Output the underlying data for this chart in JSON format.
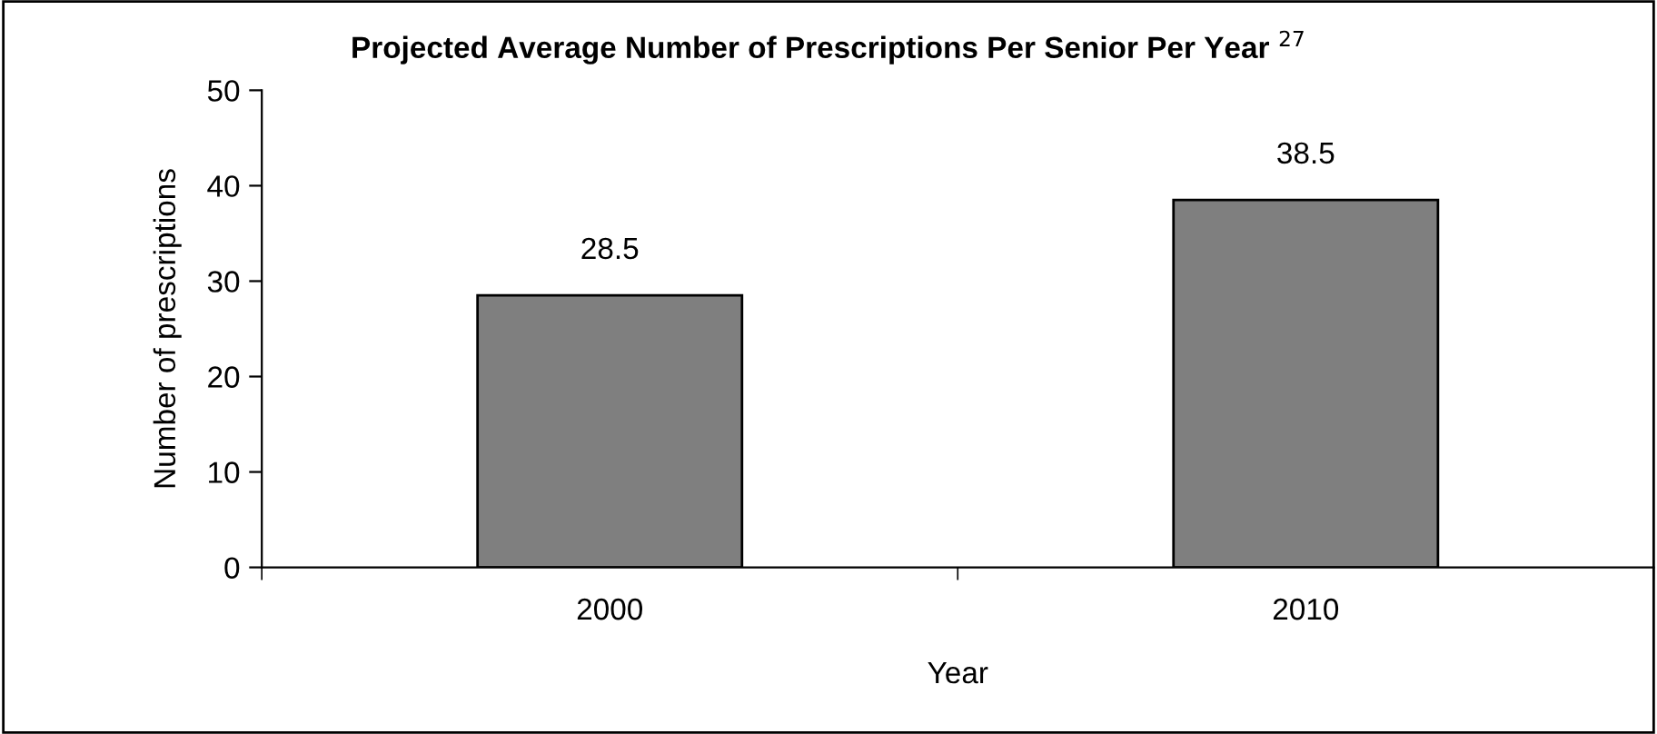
{
  "chart_data": {
    "type": "bar",
    "title": "Projected Average Number of Prescriptions Per Senior Per Year $^{27}$",
    "xlabel": "Year",
    "ylabel": "Number of prescriptions",
    "categories": [
      "2000",
      "2010"
    ],
    "series": [
      {
        "color": "#7f7f7f",
        "values": [
          28.5,
          38.5
        ]
      }
    ],
    "data_labels": true,
    "ylim": [
      0,
      50
    ],
    "yticks": [
      0,
      10,
      20,
      30,
      40,
      50
    ],
    "grid": false,
    "legend": false
  }
}
